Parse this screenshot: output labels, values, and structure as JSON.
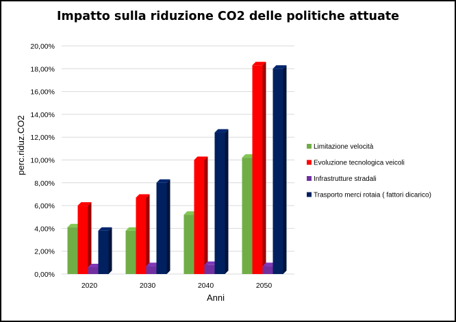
{
  "chart_data": {
    "type": "bar",
    "title": "Impatto sulla riduzione  CO2 delle politiche  attuate",
    "xlabel": "Anni",
    "ylabel": "perc.riduz.CO2",
    "categories": [
      "2020",
      "2030",
      "2040",
      "2050"
    ],
    "ylim": [
      0,
      0.2
    ],
    "y_ticks": [
      "0,00%",
      "2,00%",
      "4,00%",
      "6,00%",
      "8,00%",
      "10,00%",
      "12,00%",
      "14,00%",
      "16,00%",
      "18,00%",
      "20,00%"
    ],
    "grid": true,
    "legend_position": "right",
    "series": [
      {
        "name": "Limitazione velocità",
        "color": "#70ad47",
        "values": [
          0.041,
          0.038,
          0.052,
          0.102
        ]
      },
      {
        "name": "Evoluzione tecnologica veicoli",
        "color": "#ff0000",
        "values": [
          0.06,
          0.067,
          0.1,
          0.183
        ]
      },
      {
        "name": "Infrastrutture stradali",
        "color": "#7030a0",
        "values": [
          0.006,
          0.007,
          0.008,
          0.007
        ]
      },
      {
        "name": "Trasporto merci rotaia ( fattori dicarico)",
        "color": "#002060",
        "values": [
          0.038,
          0.08,
          0.124,
          0.18
        ]
      }
    ]
  }
}
